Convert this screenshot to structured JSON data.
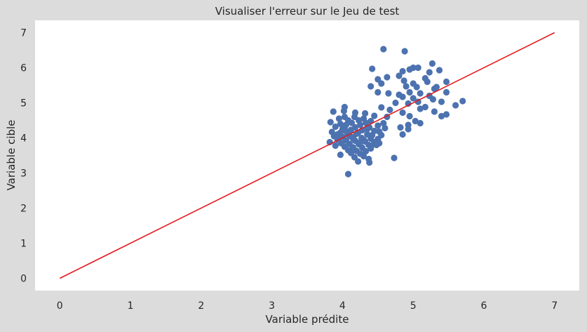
{
  "chart_data": {
    "type": "scatter",
    "title": "Visualiser l'erreur sur le Jeu de test",
    "xlabel": "Variable prédite",
    "ylabel": "Variable cible",
    "xlim": [
      -0.35,
      7.35
    ],
    "ylim": [
      -0.35,
      7.35
    ],
    "xticks": [
      "0",
      "1",
      "2",
      "3",
      "4",
      "5",
      "6",
      "7"
    ],
    "yticks": [
      "0",
      "1",
      "2",
      "3",
      "4",
      "5",
      "6",
      "7"
    ],
    "grid": false,
    "colors": {
      "points": "#4c72b0",
      "line": "#e41a1c",
      "plot_bg": "#ffffff",
      "figure_bg": "#dcdcdc"
    },
    "reference_line": {
      "x": [
        0,
        7
      ],
      "y": [
        0,
        7
      ]
    },
    "series": [
      {
        "points": [
          [
            4.58,
            6.53
          ],
          [
            4.88,
            6.47
          ],
          [
            5.27,
            6.12
          ],
          [
            4.42,
            5.97
          ],
          [
            5.0,
            6.0
          ],
          [
            4.95,
            5.95
          ],
          [
            5.07,
            6.0
          ],
          [
            5.37,
            5.93
          ],
          [
            5.23,
            5.87
          ],
          [
            4.85,
            5.9
          ],
          [
            4.8,
            5.77
          ],
          [
            5.17,
            5.7
          ],
          [
            4.63,
            5.73
          ],
          [
            4.5,
            5.67
          ],
          [
            5.47,
            5.6
          ],
          [
            4.87,
            5.63
          ],
          [
            5.0,
            5.55
          ],
          [
            5.2,
            5.6
          ],
          [
            4.55,
            5.55
          ],
          [
            4.4,
            5.47
          ],
          [
            4.9,
            5.47
          ],
          [
            5.05,
            5.45
          ],
          [
            5.33,
            5.45
          ],
          [
            5.3,
            5.4
          ],
          [
            4.65,
            5.27
          ],
          [
            4.5,
            5.3
          ],
          [
            4.8,
            5.23
          ],
          [
            4.95,
            5.3
          ],
          [
            5.1,
            5.27
          ],
          [
            5.47,
            5.3
          ],
          [
            4.85,
            5.17
          ],
          [
            5.0,
            5.13
          ],
          [
            5.23,
            5.2
          ],
          [
            5.7,
            5.05
          ],
          [
            5.4,
            5.03
          ],
          [
            5.28,
            5.1
          ],
          [
            5.07,
            5.03
          ],
          [
            4.75,
            5.0
          ],
          [
            4.55,
            4.87
          ],
          [
            4.93,
            4.98
          ],
          [
            5.17,
            4.88
          ],
          [
            5.1,
            4.83
          ],
          [
            4.67,
            4.8
          ],
          [
            5.6,
            4.93
          ],
          [
            5.3,
            4.75
          ],
          [
            4.85,
            4.72
          ],
          [
            4.95,
            4.62
          ],
          [
            5.47,
            4.67
          ],
          [
            5.4,
            4.62
          ],
          [
            4.63,
            4.6
          ],
          [
            5.03,
            4.48
          ],
          [
            5.1,
            4.42
          ],
          [
            4.93,
            4.37
          ],
          [
            4.82,
            4.3
          ],
          [
            4.93,
            4.25
          ],
          [
            4.85,
            4.1
          ],
          [
            4.73,
            3.43
          ],
          [
            4.03,
            4.88
          ],
          [
            4.02,
            4.77
          ],
          [
            3.87,
            4.75
          ],
          [
            4.18,
            4.72
          ],
          [
            4.32,
            4.7
          ],
          [
            4.45,
            4.63
          ],
          [
            4.03,
            4.6
          ],
          [
            4.17,
            4.6
          ],
          [
            3.95,
            4.55
          ],
          [
            4.3,
            4.55
          ],
          [
            4.08,
            4.5
          ],
          [
            4.23,
            4.5
          ],
          [
            4.4,
            4.48
          ],
          [
            3.83,
            4.45
          ],
          [
            4.13,
            4.43
          ],
          [
            4.33,
            4.43
          ],
          [
            4.58,
            4.42
          ],
          [
            3.97,
            4.4
          ],
          [
            4.05,
            4.37
          ],
          [
            4.25,
            4.37
          ],
          [
            4.5,
            4.35
          ],
          [
            3.9,
            4.32
          ],
          [
            4.18,
            4.3
          ],
          [
            4.38,
            4.3
          ],
          [
            4.6,
            4.28
          ],
          [
            4.0,
            4.25
          ],
          [
            4.12,
            4.23
          ],
          [
            4.28,
            4.22
          ],
          [
            4.45,
            4.2
          ],
          [
            4.52,
            4.18
          ],
          [
            3.85,
            4.17
          ],
          [
            3.97,
            4.15
          ],
          [
            4.07,
            4.13
          ],
          [
            4.2,
            4.12
          ],
          [
            4.35,
            4.1
          ],
          [
            4.42,
            4.08
          ],
          [
            4.55,
            4.08
          ],
          [
            3.88,
            4.05
          ],
          [
            4.0,
            4.03
          ],
          [
            4.15,
            4.02
          ],
          [
            4.27,
            4.0
          ],
          [
            4.4,
            3.98
          ],
          [
            4.5,
            3.97
          ],
          [
            3.93,
            3.95
          ],
          [
            4.05,
            3.93
          ],
          [
            4.18,
            3.92
          ],
          [
            4.32,
            3.9
          ],
          [
            4.45,
            3.88
          ],
          [
            3.82,
            3.88
          ],
          [
            3.98,
            3.85
          ],
          [
            4.1,
            3.83
          ],
          [
            4.23,
            3.82
          ],
          [
            4.37,
            3.8
          ],
          [
            4.48,
            3.8
          ],
          [
            3.9,
            3.78
          ],
          [
            4.03,
            3.75
          ],
          [
            4.15,
            3.73
          ],
          [
            4.28,
            3.72
          ],
          [
            4.4,
            3.7
          ],
          [
            4.08,
            3.65
          ],
          [
            4.2,
            3.63
          ],
          [
            4.33,
            3.62
          ],
          [
            4.12,
            3.57
          ],
          [
            4.25,
            3.55
          ],
          [
            3.97,
            3.52
          ],
          [
            4.17,
            3.45
          ],
          [
            4.3,
            3.48
          ],
          [
            4.37,
            3.4
          ],
          [
            4.22,
            3.33
          ],
          [
            4.38,
            3.3
          ],
          [
            4.08,
            2.97
          ],
          [
            4.52,
            3.85
          ],
          [
            4.45,
            3.82
          ],
          [
            4.3,
            3.95
          ],
          [
            4.1,
            4.05
          ],
          [
            4.22,
            4.15
          ],
          [
            4.35,
            4.25
          ],
          [
            3.93,
            4.1
          ],
          [
            4.05,
            4.2
          ],
          [
            4.15,
            3.98
          ],
          [
            4.25,
            3.87
          ],
          [
            3.95,
            4.0
          ]
        ]
      }
    ]
  }
}
